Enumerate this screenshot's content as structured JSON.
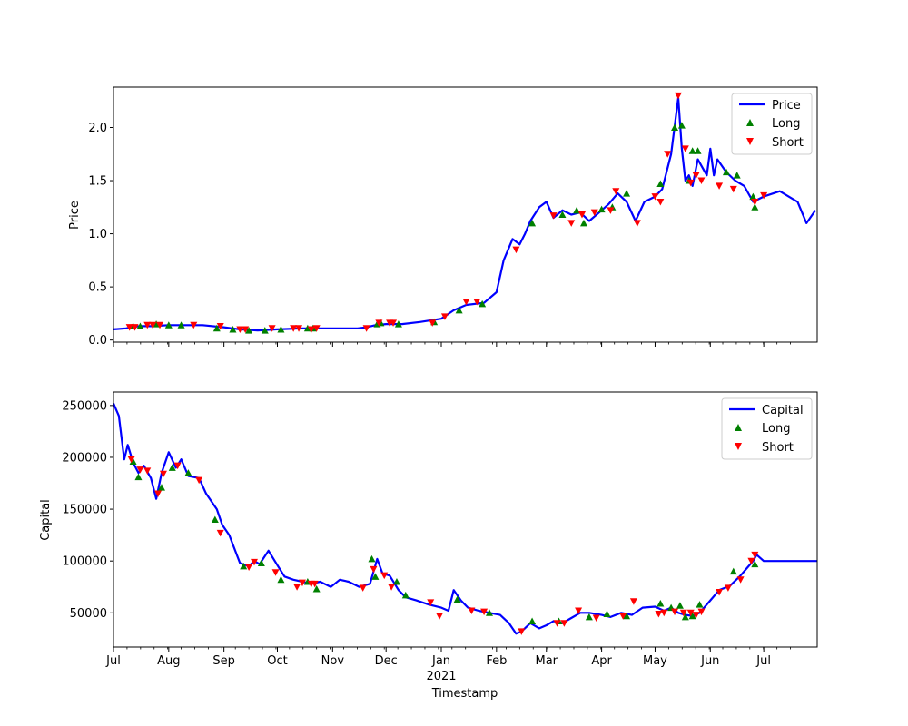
{
  "chart_data": [
    {
      "type": "line",
      "ylabel": "Price",
      "xlabel": "",
      "ylim": [
        -0.02,
        2.38
      ],
      "yticks": [
        "0.0",
        "0.5",
        "1.0",
        "1.5",
        "2.0"
      ],
      "ytick_values": [
        0.0,
        0.5,
        1.0,
        1.5,
        2.0
      ],
      "legend": {
        "position": "top-right",
        "entries": [
          "Price",
          "Long",
          "Short"
        ]
      },
      "series": [
        {
          "name": "Price",
          "color": "#0000ff",
          "x": [
            "2020-07-01",
            "2020-07-08",
            "2020-07-15",
            "2020-07-22",
            "2020-08-01",
            "2020-08-10",
            "2020-08-20",
            "2020-09-01",
            "2020-09-10",
            "2020-09-20",
            "2020-10-01",
            "2020-10-15",
            "2020-11-01",
            "2020-11-15",
            "2020-11-20",
            "2020-11-25",
            "2020-12-01",
            "2020-12-10",
            "2020-12-20",
            "2021-01-01",
            "2021-01-08",
            "2021-01-15",
            "2021-01-25",
            "2021-02-01",
            "2021-02-05",
            "2021-02-10",
            "2021-02-14",
            "2021-02-17",
            "2021-02-20",
            "2021-02-25",
            "2021-03-01",
            "2021-03-05",
            "2021-03-10",
            "2021-03-15",
            "2021-03-20",
            "2021-03-25",
            "2021-04-01",
            "2021-04-05",
            "2021-04-10",
            "2021-04-15",
            "2021-04-20",
            "2021-04-25",
            "2021-05-01",
            "2021-05-05",
            "2021-05-10",
            "2021-05-14",
            "2021-05-16",
            "2021-05-18",
            "2021-05-20",
            "2021-05-22",
            "2021-05-25",
            "2021-05-30",
            "2021-06-01",
            "2021-06-03",
            "2021-06-05",
            "2021-06-10",
            "2021-06-15",
            "2021-06-20",
            "2021-06-25",
            "2021-07-01",
            "2021-07-10",
            "2021-07-20",
            "2021-07-25",
            "2021-07-30"
          ],
          "values": [
            0.1,
            0.11,
            0.13,
            0.13,
            0.14,
            0.14,
            0.14,
            0.12,
            0.1,
            0.09,
            0.1,
            0.11,
            0.11,
            0.11,
            0.12,
            0.14,
            0.15,
            0.15,
            0.17,
            0.2,
            0.28,
            0.33,
            0.35,
            0.45,
            0.75,
            0.95,
            0.9,
            1.0,
            1.12,
            1.25,
            1.3,
            1.15,
            1.22,
            1.18,
            1.2,
            1.12,
            1.22,
            1.28,
            1.38,
            1.3,
            1.12,
            1.3,
            1.35,
            1.42,
            1.75,
            2.28,
            1.8,
            1.5,
            1.55,
            1.45,
            1.7,
            1.55,
            1.8,
            1.55,
            1.7,
            1.58,
            1.5,
            1.45,
            1.3,
            1.35,
            1.4,
            1.3,
            1.1,
            1.22
          ]
        },
        {
          "name": "Long",
          "color": "#008000",
          "marker": "triangle-up",
          "x": [
            "2020-07-12",
            "2020-07-16",
            "2020-07-25",
            "2020-08-01",
            "2020-08-08",
            "2020-08-28",
            "2020-09-06",
            "2020-09-15",
            "2020-09-24",
            "2020-10-03",
            "2020-10-18",
            "2020-10-21",
            "2020-11-26",
            "2020-11-28",
            "2020-12-08",
            "2020-12-28",
            "2021-01-11",
            "2021-01-24",
            "2021-02-21",
            "2021-03-10",
            "2021-03-18",
            "2021-03-22",
            "2021-04-01",
            "2021-04-07",
            "2021-04-15",
            "2021-05-04",
            "2021-05-12",
            "2021-05-16",
            "2021-05-20",
            "2021-05-22",
            "2021-05-25",
            "2021-06-10",
            "2021-06-16",
            "2021-06-25",
            "2021-06-26"
          ],
          "values": [
            0.13,
            0.13,
            0.15,
            0.14,
            0.14,
            0.11,
            0.1,
            0.09,
            0.09,
            0.1,
            0.11,
            0.11,
            0.15,
            0.16,
            0.15,
            0.17,
            0.28,
            0.34,
            1.1,
            1.18,
            1.22,
            1.1,
            1.23,
            1.25,
            1.38,
            1.47,
            2.0,
            2.02,
            1.5,
            1.78,
            1.78,
            1.58,
            1.55,
            1.35,
            1.25
          ]
        },
        {
          "name": "Short",
          "color": "#ff0000",
          "marker": "triangle-down",
          "x": [
            "2020-07-10",
            "2020-07-13",
            "2020-07-20",
            "2020-07-23",
            "2020-07-27",
            "2020-08-15",
            "2020-08-30",
            "2020-09-10",
            "2020-09-13",
            "2020-09-28",
            "2020-10-10",
            "2020-10-13",
            "2020-10-20",
            "2020-10-23",
            "2020-11-20",
            "2020-11-27",
            "2020-12-03",
            "2020-12-05",
            "2020-12-27",
            "2021-01-03",
            "2021-01-15",
            "2021-01-21",
            "2021-02-12",
            "2021-03-05",
            "2021-03-15",
            "2021-03-21",
            "2021-03-28",
            "2021-04-06",
            "2021-04-09",
            "2021-04-21",
            "2021-05-01",
            "2021-05-04",
            "2021-05-08",
            "2021-05-14",
            "2021-05-18",
            "2021-05-21",
            "2021-05-24",
            "2021-05-27",
            "2021-06-06",
            "2021-06-14",
            "2021-06-26",
            "2021-07-01"
          ],
          "values": [
            0.12,
            0.12,
            0.14,
            0.14,
            0.14,
            0.14,
            0.13,
            0.1,
            0.1,
            0.11,
            0.11,
            0.11,
            0.1,
            0.11,
            0.11,
            0.16,
            0.16,
            0.16,
            0.16,
            0.22,
            0.36,
            0.36,
            0.85,
            1.17,
            1.1,
            1.18,
            1.2,
            1.22,
            1.4,
            1.1,
            1.35,
            1.3,
            1.75,
            2.3,
            1.8,
            1.48,
            1.55,
            1.5,
            1.45,
            1.42,
            1.3,
            1.36
          ]
        }
      ]
    },
    {
      "type": "line",
      "ylabel": "Capital",
      "xlabel": "Timestamp",
      "ylim": [
        17000,
        263000
      ],
      "yticks": [
        "50000",
        "100000",
        "150000",
        "200000",
        "250000"
      ],
      "ytick_values": [
        50000,
        100000,
        150000,
        200000,
        250000
      ],
      "xticks": [
        "Jul",
        "Aug",
        "Sep",
        "Oct",
        "Nov",
        "Dec",
        "Jan",
        "Feb",
        "Mar",
        "Apr",
        "May",
        "Jun",
        "Jul"
      ],
      "xtick_dates": [
        "2020-07-01",
        "2020-08-01",
        "2020-09-01",
        "2020-10-01",
        "2020-11-01",
        "2020-12-01",
        "2021-01-01",
        "2021-02-01",
        "2021-03-01",
        "2021-04-01",
        "2021-05-01",
        "2021-06-01",
        "2021-07-01"
      ],
      "xtick_year_label": "2021",
      "xlim": [
        "2020-07-01",
        "2021-07-31"
      ],
      "legend": {
        "position": "top-right",
        "entries": [
          "Capital",
          "Long",
          "Short"
        ]
      },
      "series": [
        {
          "name": "Capital",
          "color": "#0000ff",
          "x": [
            "2020-07-01",
            "2020-07-04",
            "2020-07-07",
            "2020-07-09",
            "2020-07-12",
            "2020-07-15",
            "2020-07-18",
            "2020-07-22",
            "2020-07-25",
            "2020-07-28",
            "2020-08-01",
            "2020-08-05",
            "2020-08-08",
            "2020-08-12",
            "2020-08-18",
            "2020-08-22",
            "2020-08-28",
            "2020-08-31",
            "2020-09-04",
            "2020-09-10",
            "2020-09-15",
            "2020-09-18",
            "2020-09-21",
            "2020-09-26",
            "2020-10-01",
            "2020-10-05",
            "2020-10-10",
            "2020-10-15",
            "2020-10-20",
            "2020-10-25",
            "2020-10-31",
            "2020-11-05",
            "2020-11-10",
            "2020-11-16",
            "2020-11-22",
            "2020-11-26",
            "2020-11-29",
            "2020-12-03",
            "2020-12-08",
            "2020-12-12",
            "2020-12-18",
            "2020-12-25",
            "2021-01-01",
            "2021-01-05",
            "2021-01-08",
            "2021-01-12",
            "2021-01-16",
            "2021-01-22",
            "2021-01-28",
            "2021-02-03",
            "2021-02-08",
            "2021-02-12",
            "2021-02-15",
            "2021-02-20",
            "2021-02-25",
            "2021-03-01",
            "2021-03-05",
            "2021-03-10",
            "2021-03-15",
            "2021-03-20",
            "2021-03-25",
            "2021-04-01",
            "2021-04-06",
            "2021-04-12",
            "2021-04-18",
            "2021-04-24",
            "2021-05-01",
            "2021-05-06",
            "2021-05-10",
            "2021-05-14",
            "2021-05-18",
            "2021-05-22",
            "2021-05-26",
            "2021-06-01",
            "2021-06-06",
            "2021-06-12",
            "2021-06-18",
            "2021-06-22",
            "2021-06-25",
            "2021-06-27",
            "2021-07-01",
            "2021-07-15",
            "2021-07-31"
          ],
          "values": [
            252000,
            240000,
            198000,
            212000,
            195000,
            185000,
            192000,
            180000,
            160000,
            185000,
            205000,
            190000,
            198000,
            182000,
            180000,
            165000,
            150000,
            135000,
            125000,
            98000,
            95000,
            100000,
            97000,
            110000,
            96000,
            85000,
            82000,
            80000,
            78000,
            80000,
            75000,
            82000,
            80000,
            75000,
            78000,
            102000,
            88000,
            86000,
            72000,
            65000,
            62000,
            58000,
            55000,
            52000,
            72000,
            62000,
            55000,
            52000,
            50000,
            48000,
            40000,
            30000,
            32000,
            40000,
            35000,
            38000,
            42000,
            40000,
            45000,
            50000,
            50000,
            48000,
            46000,
            50000,
            48000,
            55000,
            56000,
            52000,
            55000,
            50000,
            48000,
            47000,
            50000,
            62000,
            72000,
            76000,
            86000,
            94000,
            100000,
            106000,
            100000,
            100000,
            100000
          ]
        },
        {
          "name": "Long",
          "color": "#008000",
          "marker": "triangle-up",
          "x": [
            "2020-07-12",
            "2020-07-15",
            "2020-07-28",
            "2020-08-03",
            "2020-08-12",
            "2020-08-27",
            "2020-09-12",
            "2020-09-22",
            "2020-10-03",
            "2020-10-18",
            "2020-10-23",
            "2020-11-23",
            "2020-11-25",
            "2020-12-07",
            "2020-12-12",
            "2021-01-10",
            "2021-01-28",
            "2021-02-21",
            "2021-03-08",
            "2021-03-25",
            "2021-04-04",
            "2021-04-15",
            "2021-05-04",
            "2021-05-10",
            "2021-05-15",
            "2021-05-18",
            "2021-05-22",
            "2021-05-26",
            "2021-06-14",
            "2021-06-26"
          ],
          "values": [
            196000,
            181000,
            171000,
            190000,
            185000,
            140000,
            95000,
            98000,
            82000,
            80000,
            73000,
            102000,
            85000,
            80000,
            67000,
            63000,
            50000,
            42000,
            42000,
            46000,
            49000,
            47000,
            59000,
            55000,
            57000,
            46000,
            47000,
            58000,
            90000,
            97000
          ]
        },
        {
          "name": "Short",
          "color": "#ff0000",
          "marker": "triangle-down",
          "x": [
            "2020-07-11",
            "2020-07-16",
            "2020-07-20",
            "2020-07-26",
            "2020-07-29",
            "2020-08-06",
            "2020-08-18",
            "2020-08-30",
            "2020-09-15",
            "2020-09-18",
            "2020-09-30",
            "2020-10-12",
            "2020-10-15",
            "2020-10-20",
            "2020-10-22",
            "2020-11-18",
            "2020-11-24",
            "2020-11-30",
            "2020-12-04",
            "2020-12-26",
            "2020-12-31",
            "2021-01-18",
            "2021-01-25",
            "2021-02-15",
            "2021-03-07",
            "2021-03-11",
            "2021-03-19",
            "2021-03-29",
            "2021-04-13",
            "2021-04-19",
            "2021-05-03",
            "2021-05-06",
            "2021-05-12",
            "2021-05-17",
            "2021-05-21",
            "2021-05-24",
            "2021-05-27",
            "2021-06-06",
            "2021-06-11",
            "2021-06-18",
            "2021-06-24",
            "2021-06-26"
          ],
          "values": [
            198000,
            188000,
            187000,
            165000,
            184000,
            192000,
            178000,
            127000,
            94000,
            99000,
            89000,
            75000,
            79000,
            78000,
            78000,
            74000,
            92000,
            86000,
            75000,
            60000,
            47000,
            52000,
            51000,
            32000,
            40000,
            40000,
            52000,
            45000,
            47000,
            61000,
            49000,
            50000,
            51000,
            50000,
            50000,
            48000,
            51000,
            70000,
            74000,
            82000,
            100000,
            106000
          ]
        }
      ]
    }
  ]
}
